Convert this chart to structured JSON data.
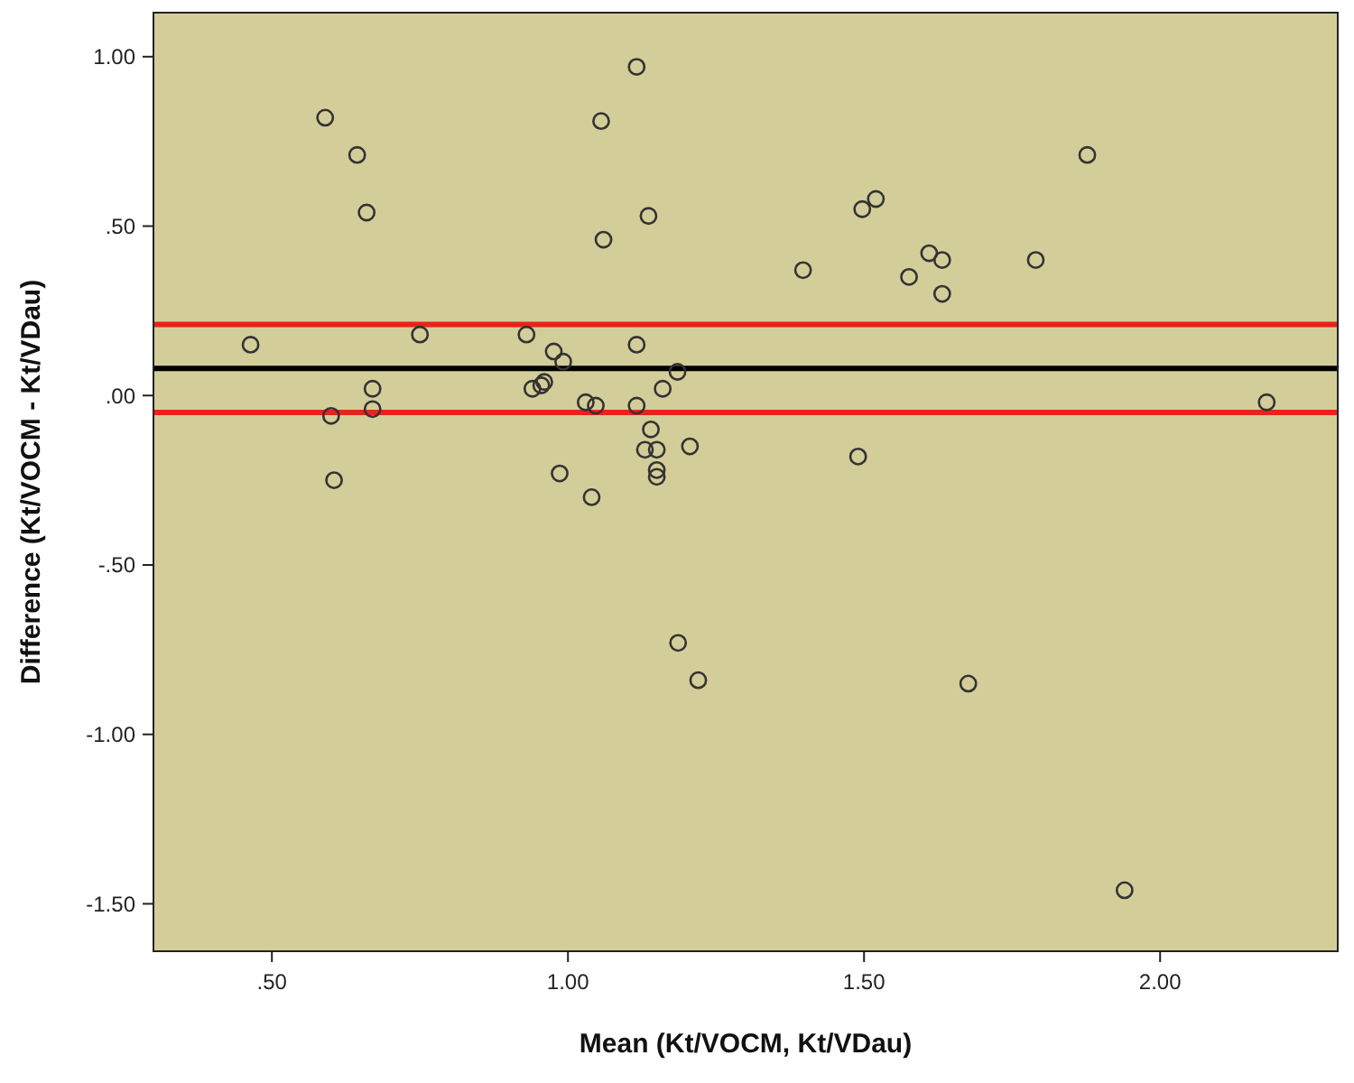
{
  "chart_data": {
    "type": "scatter",
    "xlabel": "Mean (Kt/VOCM, Kt/VDau)",
    "ylabel": "Difference (Kt/VOCM - Kt/VDau)",
    "x": [
      0.59,
      0.644,
      0.66,
      1.116,
      1.056,
      1.136,
      1.06,
      0.464,
      0.75,
      0.93,
      0.976,
      0.992,
      1.116,
      1.185,
      1.16,
      0.67,
      0.67,
      0.6,
      0.94,
      0.955,
      0.96,
      1.03,
      1.047,
      1.116,
      1.14,
      1.13,
      1.15,
      1.206,
      1.15,
      1.15,
      0.605,
      0.986,
      1.04,
      1.877,
      1.497,
      1.52,
      1.397,
      1.576,
      1.61,
      1.632,
      1.79,
      1.632,
      2.18,
      1.49,
      1.186,
      1.22,
      1.676,
      1.94
    ],
    "series": [
      {
        "color": "#333333",
        "values": [
          0.82,
          0.71,
          0.54,
          0.97,
          0.81,
          0.53,
          0.46,
          0.15,
          0.18,
          0.18,
          0.13,
          0.1,
          0.15,
          0.07,
          0.02,
          0.02,
          -0.04,
          -0.06,
          0.02,
          0.03,
          0.04,
          -0.02,
          -0.03,
          -0.03,
          -0.1,
          -0.16,
          -0.16,
          -0.15,
          -0.22,
          -0.24,
          -0.25,
          -0.23,
          -0.3,
          0.71,
          0.55,
          0.58,
          0.37,
          0.35,
          0.42,
          0.4,
          0.4,
          0.3,
          -0.02,
          -0.18,
          -0.73,
          -0.84,
          -0.85,
          -1.46
        ]
      }
    ],
    "marker": "circle",
    "xlim": [
      0.3,
      2.3
    ],
    "xticks": [
      {
        "value": 0.5,
        "label": ".50"
      },
      {
        "value": 1,
        "label": "1.00"
      },
      {
        "value": 1.5,
        "label": "1.50"
      },
      {
        "value": 2,
        "label": "2.00"
      }
    ],
    "ylim": [
      -1.64,
      1.13
    ],
    "yticks": [
      {
        "value": 1,
        "label": "1.00"
      },
      {
        "value": 0.5,
        "label": ".50"
      },
      {
        "value": 0,
        "label": ".00"
      },
      {
        "value": -0.5,
        "label": "-.50"
      },
      {
        "value": -1,
        "label": "-1.00"
      },
      {
        "value": -1.5,
        "label": "-1.50"
      }
    ],
    "ref_lines": [
      {
        "axis": "y",
        "value": 0.21,
        "color": "#e8231a"
      },
      {
        "axis": "y",
        "value": 0.08,
        "color": "#000000"
      },
      {
        "axis": "y",
        "value": -0.05,
        "color": "#e8231a"
      }
    ],
    "grid": false
  }
}
